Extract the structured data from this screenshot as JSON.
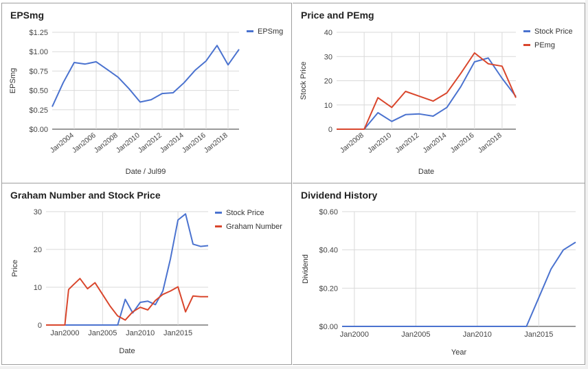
{
  "colors": {
    "blue": "#4a72cf",
    "red": "#d9462c",
    "grid": "#d9d9d9",
    "axis": "#333333",
    "text": "#444444"
  },
  "charts": [
    {
      "type": "line",
      "title": "EPSmg",
      "xlabel": "Date / Jul99",
      "ylabel": "EPSmg",
      "x_ticks": [
        "Jan2004",
        "Jan2006",
        "Jan2008",
        "Jan2010",
        "Jan2012",
        "Jan2014",
        "Jan2016",
        "Jan2018"
      ],
      "x_tick_values": [
        2004,
        2006,
        2008,
        2010,
        2012,
        2014,
        2016,
        2018
      ],
      "x_tick_rotated": true,
      "xlim": [
        2002,
        2019
      ],
      "y_ticks": [
        "$0.00",
        "$0.25",
        "$0.50",
        "$0.75",
        "$1.00",
        "$1.25"
      ],
      "y_tick_values": [
        0,
        0.25,
        0.5,
        0.75,
        1.0,
        1.25
      ],
      "ylim": [
        0,
        1.25
      ],
      "legend_position": "top-right",
      "series": [
        {
          "name": "EPSmg",
          "color": "blue",
          "x": [
            2002,
            2003,
            2004,
            2005,
            2006,
            2007,
            2008,
            2009,
            2010,
            2011,
            2012,
            2013,
            2014,
            2015,
            2016,
            2017,
            2018,
            2019
          ],
          "y": [
            0.29,
            0.6,
            0.86,
            0.84,
            0.87,
            0.77,
            0.67,
            0.52,
            0.35,
            0.38,
            0.46,
            0.47,
            0.6,
            0.76,
            0.88,
            1.08,
            0.83,
            1.03
          ]
        }
      ]
    },
    {
      "type": "line",
      "title": "Price and PEmg",
      "xlabel": "Date",
      "ylabel": "Stock Price",
      "x_ticks": [
        "Jan2008",
        "Jan2010",
        "Jan2012",
        "Jan2014",
        "Jan2016",
        "Jan2018"
      ],
      "x_tick_values": [
        2008,
        2010,
        2012,
        2014,
        2016,
        2018
      ],
      "x_tick_rotated": true,
      "xlim": [
        2006,
        2019
      ],
      "y_ticks": [
        "0",
        "10",
        "20",
        "30",
        "40"
      ],
      "y_tick_values": [
        0,
        10,
        20,
        30,
        40
      ],
      "ylim": [
        0,
        40
      ],
      "legend_position": "top-right",
      "series": [
        {
          "name": "Stock Price",
          "color": "blue",
          "x": [
            2006,
            2007,
            2008,
            2009,
            2010,
            2011,
            2012,
            2013,
            2014,
            2015,
            2016,
            2017,
            2018,
            2019
          ],
          "y": [
            0,
            0,
            0,
            6.8,
            3.2,
            6.0,
            6.3,
            5.4,
            9.0,
            17.5,
            27.8,
            29.4,
            21,
            13.5
          ]
        },
        {
          "name": "PEmg",
          "color": "red",
          "x": [
            2006,
            2007,
            2008,
            2009,
            2010,
            2011,
            2012,
            2013,
            2014,
            2015,
            2016,
            2017,
            2018,
            2019
          ],
          "y": [
            0,
            0,
            0,
            13,
            9,
            15.6,
            13.6,
            11.6,
            15,
            23,
            31.5,
            27,
            26,
            13
          ]
        }
      ]
    },
    {
      "type": "line",
      "title": "Graham Number and Stock Price",
      "xlabel": "Date",
      "ylabel": "Price",
      "x_ticks": [
        "Jan2000",
        "Jan2005",
        "Jan2010",
        "Jan2015"
      ],
      "x_tick_values": [
        2000,
        2005,
        2010,
        2015
      ],
      "x_tick_rotated": false,
      "xlim": [
        1997.5,
        2019
      ],
      "y_ticks": [
        "0",
        "10",
        "20",
        "30"
      ],
      "y_tick_values": [
        0,
        10,
        20,
        30
      ],
      "ylim": [
        0,
        30
      ],
      "legend_position": "top-right",
      "series": [
        {
          "name": "Stock Price",
          "color": "blue",
          "x": [
            1997.5,
            1998,
            1999,
            2000,
            2001,
            2002,
            2003,
            2004,
            2005,
            2006,
            2007,
            2008,
            2009,
            2010,
            2011,
            2012,
            2013,
            2014,
            2015,
            2016,
            2017,
            2018,
            2019
          ],
          "y": [
            0,
            0,
            0,
            0,
            0,
            0,
            0,
            0,
            0,
            0,
            0,
            6.8,
            3.2,
            6.0,
            6.3,
            5.4,
            9.0,
            17.5,
            27.8,
            29.4,
            21.4,
            20.8,
            21
          ]
        },
        {
          "name": "Graham Number",
          "color": "red",
          "x": [
            1997.5,
            1998,
            1999,
            2000,
            2000.5,
            2001,
            2002,
            2003,
            2004,
            2005,
            2006,
            2007,
            2008,
            2009,
            2010,
            2011,
            2012,
            2013,
            2014,
            2015,
            2016,
            2017,
            2018,
            2019
          ],
          "y": [
            0,
            0,
            0,
            0,
            9.4,
            10.4,
            12.3,
            9.6,
            11.2,
            8.1,
            5,
            2.4,
            1.3,
            3.5,
            4.7,
            4,
            6.5,
            8.1,
            9,
            10.1,
            3.5,
            7.7,
            7.5,
            7.5
          ]
        }
      ]
    },
    {
      "type": "line",
      "title": "Dividend History",
      "xlabel": "Year",
      "ylabel": "Dividend",
      "x_ticks": [
        "Jan2000",
        "Jan2005",
        "Jan2010",
        "Jan2015"
      ],
      "x_tick_values": [
        2000,
        2005,
        2010,
        2015
      ],
      "x_tick_rotated": false,
      "xlim": [
        1999,
        2018
      ],
      "y_ticks": [
        "$0.00",
        "$0.20",
        "$0.40",
        "$0.60"
      ],
      "y_tick_values": [
        0,
        0.2,
        0.4,
        0.6
      ],
      "ylim": [
        0,
        0.6
      ],
      "legend_position": "none",
      "series": [
        {
          "name": "",
          "color": "blue",
          "x": [
            1999,
            2014,
            2015,
            2016,
            2017,
            2018
          ],
          "y": [
            0,
            0,
            0.15,
            0.3,
            0.4,
            0.44
          ]
        }
      ]
    }
  ]
}
